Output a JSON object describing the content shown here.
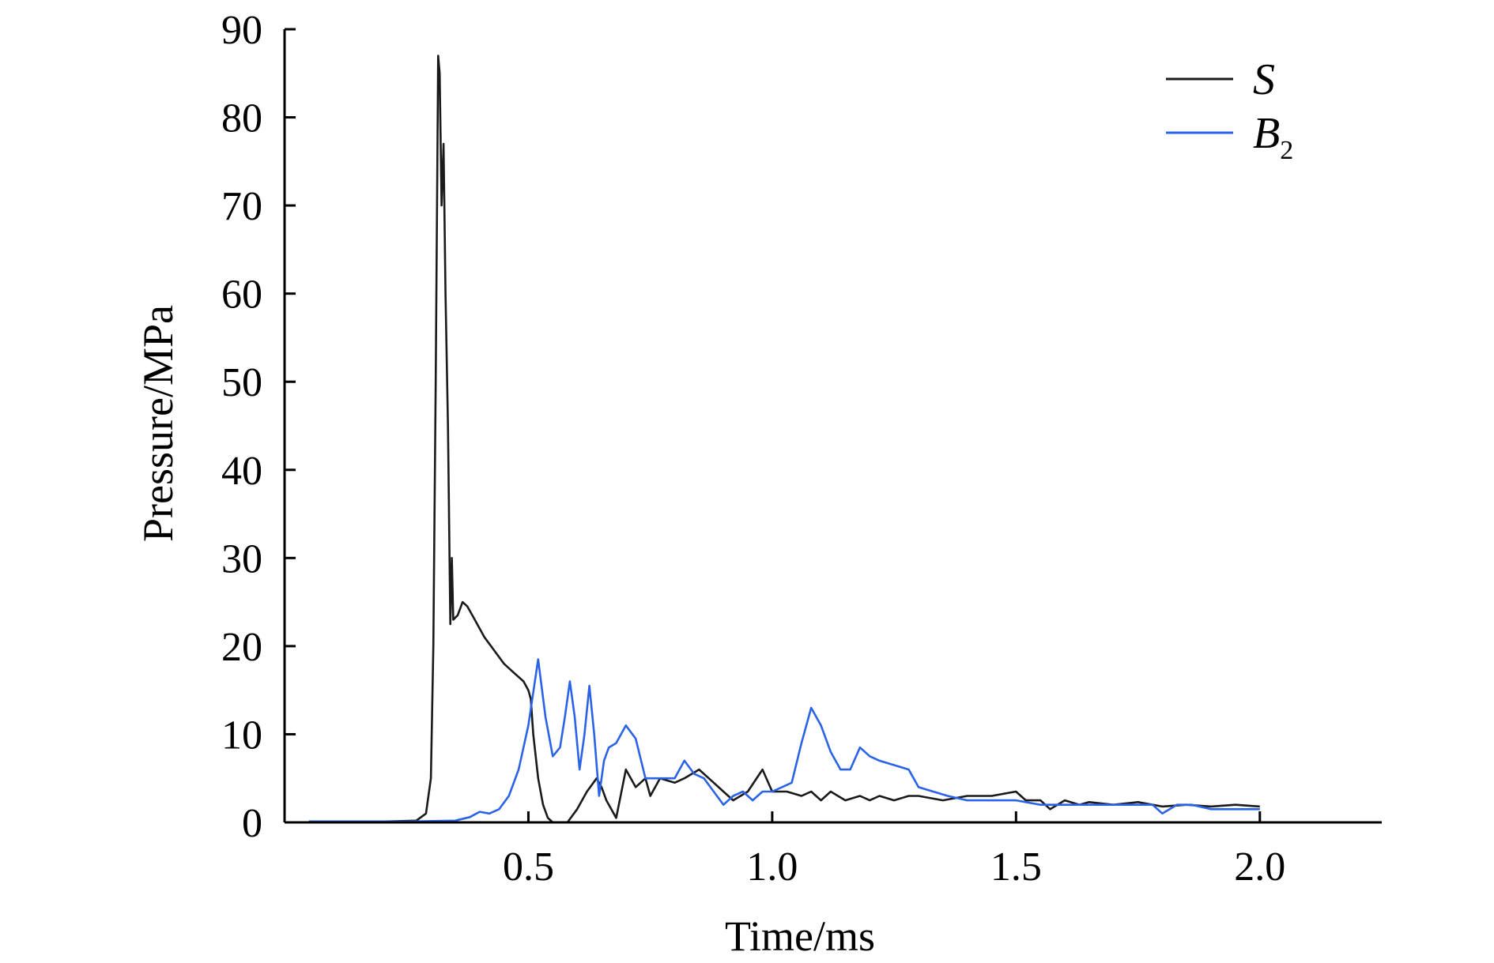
{
  "chart_data": {
    "type": "line",
    "xlabel": "Time/ms",
    "ylabel": "Pressure/MPa",
    "xlim": [
      0,
      2.25
    ],
    "ylim": [
      0,
      90
    ],
    "x_ticks": [
      0.5,
      1.0,
      1.5,
      2.0
    ],
    "x_tick_labels": [
      "0.5",
      "1.0",
      "1.5",
      "2.0"
    ],
    "y_ticks": [
      0,
      10,
      20,
      30,
      40,
      50,
      60,
      70,
      80,
      90
    ],
    "y_tick_labels": [
      "0",
      "10",
      "20",
      "30",
      "40",
      "50",
      "60",
      "70",
      "80",
      "90"
    ],
    "grid": false,
    "legend_position": "top-right",
    "series": [
      {
        "name": "S",
        "name_main": "S",
        "name_sub": "",
        "color": "#1a1a1a",
        "points": [
          [
            0.05,
            0.1
          ],
          [
            0.1,
            0.1
          ],
          [
            0.2,
            0.1
          ],
          [
            0.27,
            0.2
          ],
          [
            0.29,
            1.0
          ],
          [
            0.3,
            5.0
          ],
          [
            0.305,
            20
          ],
          [
            0.31,
            50
          ],
          [
            0.315,
            87
          ],
          [
            0.318,
            85
          ],
          [
            0.322,
            70
          ],
          [
            0.326,
            77
          ],
          [
            0.33,
            60
          ],
          [
            0.335,
            45
          ],
          [
            0.34,
            22.5
          ],
          [
            0.343,
            30
          ],
          [
            0.346,
            23
          ],
          [
            0.355,
            23.5
          ],
          [
            0.365,
            25
          ],
          [
            0.375,
            24.5
          ],
          [
            0.39,
            23
          ],
          [
            0.41,
            21
          ],
          [
            0.43,
            19.5
          ],
          [
            0.45,
            18
          ],
          [
            0.47,
            17
          ],
          [
            0.49,
            16
          ],
          [
            0.5,
            15
          ],
          [
            0.505,
            14
          ],
          [
            0.51,
            10
          ],
          [
            0.52,
            5
          ],
          [
            0.53,
            2
          ],
          [
            0.54,
            0.5
          ],
          [
            0.55,
            0
          ],
          [
            0.58,
            0
          ],
          [
            0.6,
            1.5
          ],
          [
            0.62,
            3.5
          ],
          [
            0.64,
            5
          ],
          [
            0.65,
            4
          ],
          [
            0.66,
            2.5
          ],
          [
            0.67,
            1.5
          ],
          [
            0.68,
            0.5
          ],
          [
            0.7,
            6
          ],
          [
            0.72,
            4
          ],
          [
            0.74,
            5
          ],
          [
            0.75,
            3
          ],
          [
            0.77,
            5
          ],
          [
            0.8,
            4.5
          ],
          [
            0.82,
            5
          ],
          [
            0.85,
            6
          ],
          [
            0.88,
            4.5
          ],
          [
            0.9,
            3.5
          ],
          [
            0.92,
            2.5
          ],
          [
            0.95,
            3.5
          ],
          [
            0.98,
            6
          ],
          [
            1.0,
            3.5
          ],
          [
            1.03,
            3.5
          ],
          [
            1.06,
            3
          ],
          [
            1.08,
            3.5
          ],
          [
            1.1,
            2.5
          ],
          [
            1.12,
            3.5
          ],
          [
            1.15,
            2.5
          ],
          [
            1.18,
            3
          ],
          [
            1.2,
            2.5
          ],
          [
            1.22,
            3
          ],
          [
            1.25,
            2.5
          ],
          [
            1.28,
            3
          ],
          [
            1.3,
            3
          ],
          [
            1.35,
            2.5
          ],
          [
            1.4,
            3
          ],
          [
            1.45,
            3
          ],
          [
            1.5,
            3.5
          ],
          [
            1.52,
            2.5
          ],
          [
            1.55,
            2.5
          ],
          [
            1.57,
            1.5
          ],
          [
            1.6,
            2.5
          ],
          [
            1.63,
            2
          ],
          [
            1.65,
            2.3
          ],
          [
            1.7,
            2
          ],
          [
            1.75,
            2.3
          ],
          [
            1.8,
            1.8
          ],
          [
            1.85,
            2
          ],
          [
            1.9,
            1.8
          ],
          [
            1.95,
            2
          ],
          [
            2.0,
            1.8
          ]
        ]
      },
      {
        "name": "B2",
        "name_main": "B",
        "name_sub": "2",
        "color": "#2a63e8",
        "points": [
          [
            0.05,
            0.1
          ],
          [
            0.15,
            0.1
          ],
          [
            0.25,
            0.1
          ],
          [
            0.35,
            0.2
          ],
          [
            0.38,
            0.6
          ],
          [
            0.4,
            1.2
          ],
          [
            0.42,
            1.0
          ],
          [
            0.44,
            1.5
          ],
          [
            0.46,
            3
          ],
          [
            0.48,
            6
          ],
          [
            0.5,
            11
          ],
          [
            0.52,
            18.5
          ],
          [
            0.535,
            12
          ],
          [
            0.55,
            7.5
          ],
          [
            0.565,
            8.5
          ],
          [
            0.575,
            12
          ],
          [
            0.585,
            16
          ],
          [
            0.595,
            12
          ],
          [
            0.605,
            6
          ],
          [
            0.615,
            10
          ],
          [
            0.625,
            15.5
          ],
          [
            0.635,
            10
          ],
          [
            0.645,
            3
          ],
          [
            0.655,
            7
          ],
          [
            0.665,
            8.5
          ],
          [
            0.68,
            9
          ],
          [
            0.7,
            11
          ],
          [
            0.72,
            9.5
          ],
          [
            0.74,
            5
          ],
          [
            0.76,
            5
          ],
          [
            0.78,
            5
          ],
          [
            0.8,
            5
          ],
          [
            0.82,
            7
          ],
          [
            0.84,
            5.5
          ],
          [
            0.86,
            5
          ],
          [
            0.88,
            3.5
          ],
          [
            0.9,
            2
          ],
          [
            0.92,
            3
          ],
          [
            0.94,
            3.5
          ],
          [
            0.96,
            2.5
          ],
          [
            0.98,
            3.5
          ],
          [
            1.0,
            3.5
          ],
          [
            1.02,
            4
          ],
          [
            1.04,
            4.5
          ],
          [
            1.06,
            9
          ],
          [
            1.08,
            13
          ],
          [
            1.1,
            11
          ],
          [
            1.12,
            8
          ],
          [
            1.14,
            6
          ],
          [
            1.16,
            6
          ],
          [
            1.18,
            8.5
          ],
          [
            1.2,
            7.5
          ],
          [
            1.22,
            7
          ],
          [
            1.25,
            6.5
          ],
          [
            1.28,
            6
          ],
          [
            1.3,
            4
          ],
          [
            1.33,
            3.5
          ],
          [
            1.36,
            3
          ],
          [
            1.4,
            2.5
          ],
          [
            1.45,
            2.5
          ],
          [
            1.5,
            2.5
          ],
          [
            1.55,
            2
          ],
          [
            1.6,
            2
          ],
          [
            1.65,
            2
          ],
          [
            1.7,
            2
          ],
          [
            1.75,
            2
          ],
          [
            1.78,
            2
          ],
          [
            1.8,
            1
          ],
          [
            1.83,
            2
          ],
          [
            1.86,
            2
          ],
          [
            1.9,
            1.5
          ],
          [
            1.95,
            1.5
          ],
          [
            2.0,
            1.5
          ]
        ]
      }
    ]
  }
}
